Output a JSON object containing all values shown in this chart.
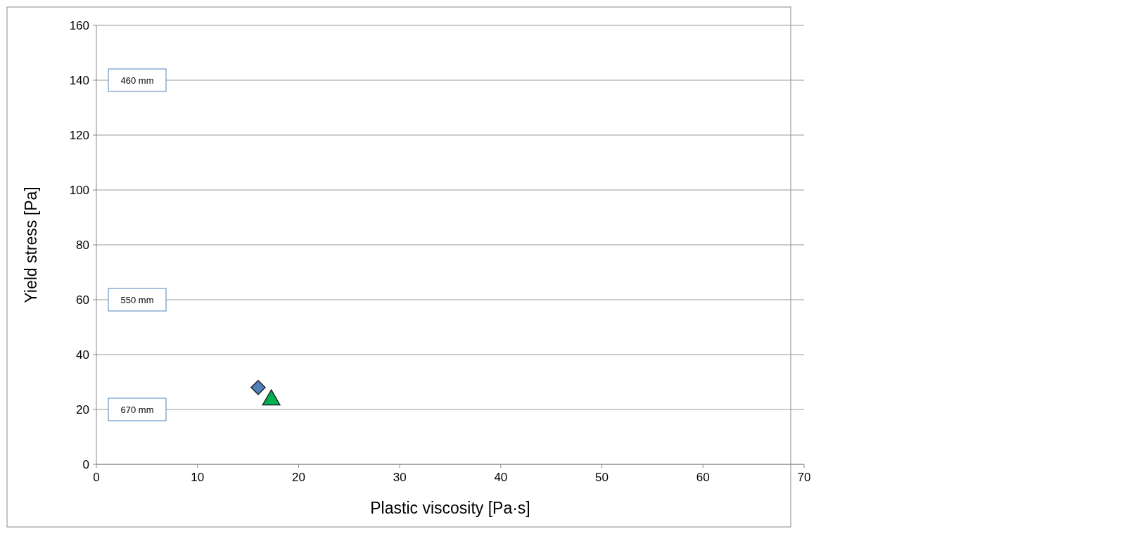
{
  "chart_data": {
    "type": "scatter",
    "xlabel": "Plastic viscosity [Pa·s]",
    "ylabel": "Yield stress [Pa]",
    "xlim": [
      0,
      70
    ],
    "xticks": [
      0,
      10,
      20,
      30,
      40,
      50,
      60,
      70
    ],
    "ylim": [
      0,
      160
    ],
    "yticks": [
      0,
      20,
      40,
      60,
      80,
      100,
      120,
      140,
      160
    ],
    "grid": "y",
    "series": [
      {
        "color": "#4f81bd",
        "marker": "diamond",
        "x": [
          16
        ],
        "values": [
          28
        ]
      },
      {
        "color": "#00b050",
        "marker": "triangle",
        "x": [
          17.3
        ],
        "values": [
          23.5
        ]
      }
    ],
    "annotations": [
      "460 mm",
      "550 mm",
      "670 mm"
    ]
  }
}
